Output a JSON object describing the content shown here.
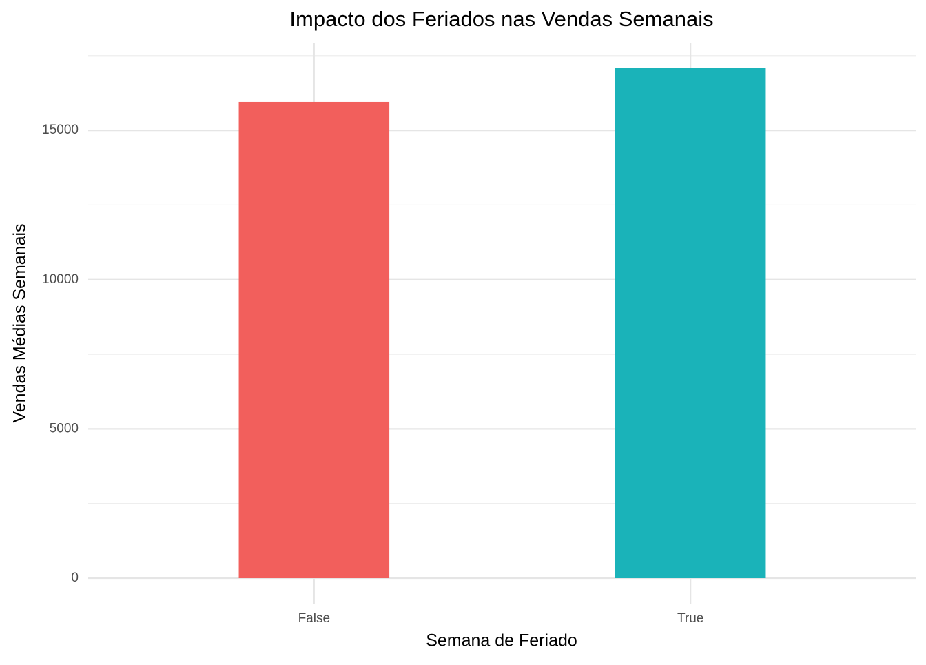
{
  "chart_data": {
    "type": "bar",
    "title": "Impacto dos Feriados nas Vendas Semanais",
    "x_label": "Semana de Feriado",
    "y_label": "Vendas Médias Semanais",
    "categories": [
      "False",
      "True"
    ],
    "values": [
      15950,
      17080
    ],
    "colors": [
      "#f25f5c",
      "#1ab3b9"
    ],
    "ylim": [
      -854,
      17934
    ],
    "yticks": [
      0,
      5000,
      10000,
      15000
    ],
    "y_minor_ticks": [
      2500,
      7500,
      12500,
      17500
    ],
    "grid": true
  }
}
